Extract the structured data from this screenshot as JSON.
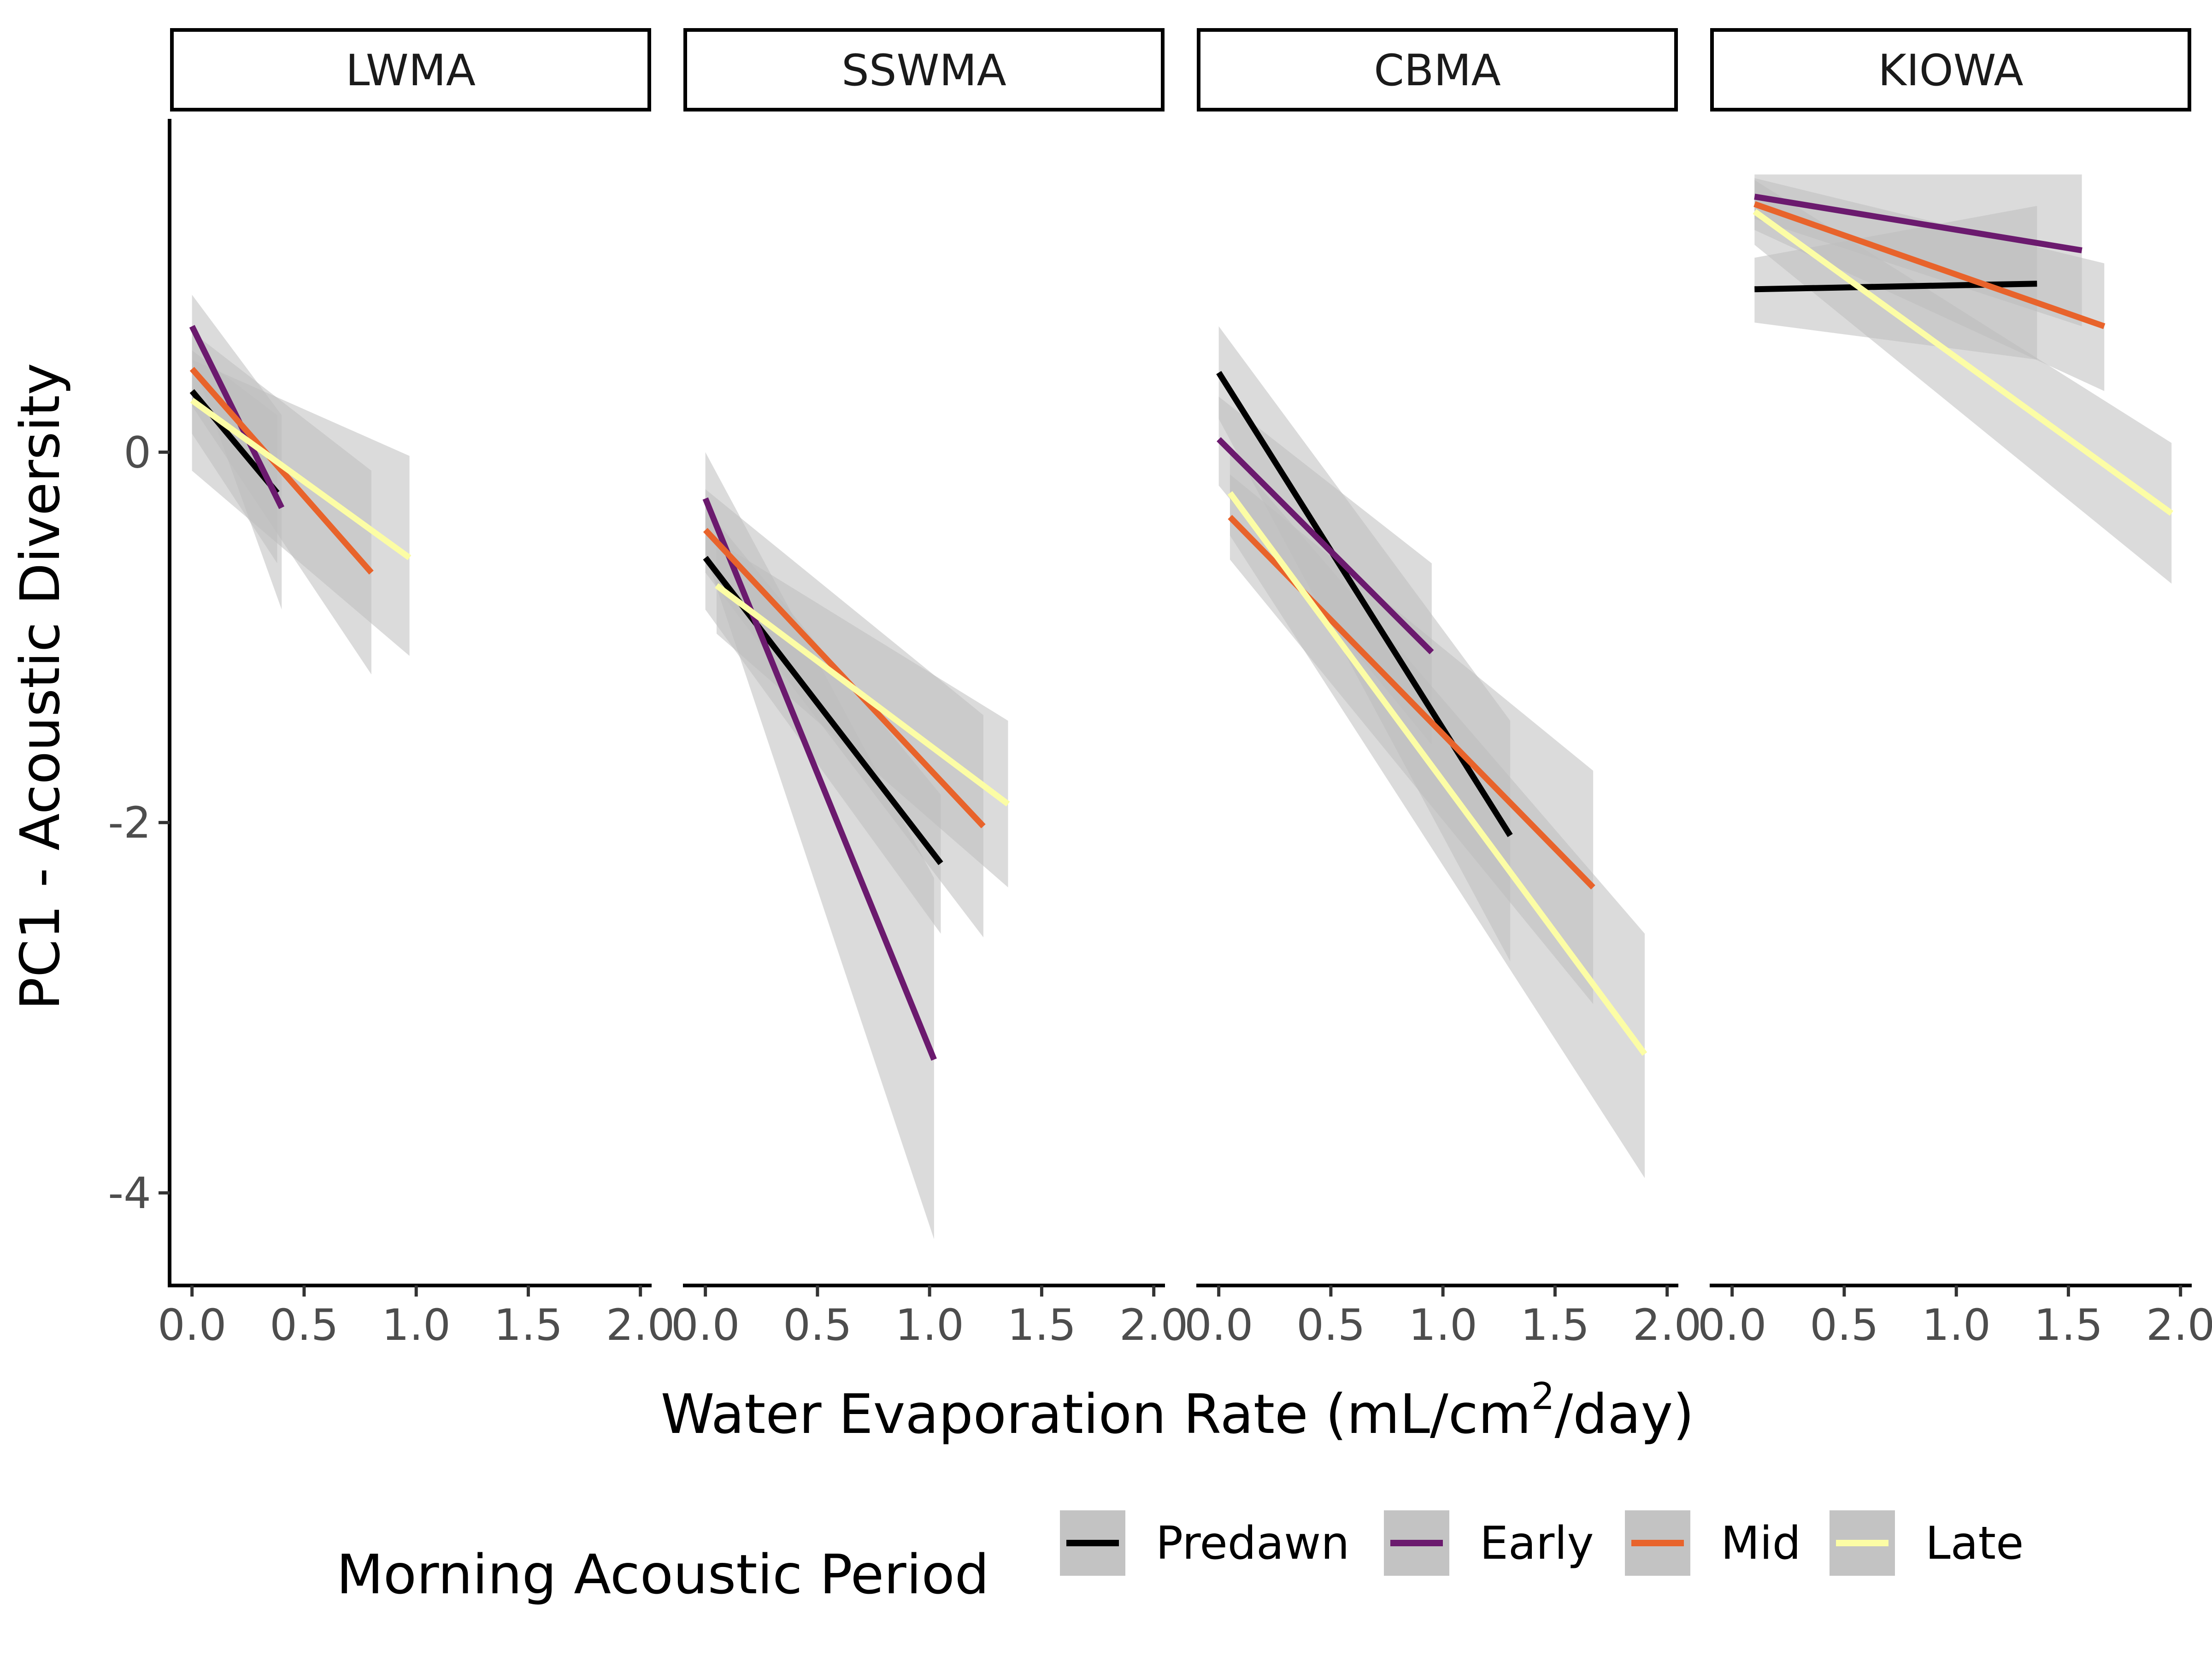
{
  "chart_data": {
    "type": "line",
    "facets": [
      "LWMA",
      "SSWMA",
      "CBMA",
      "KIOWA"
    ],
    "xlabel_main": "Water Evaporation Rate (mL/cm",
    "xlabel_sup": "2",
    "xlabel_tail": "/day)",
    "ylabel": "PC1 - Acoustic Diversity",
    "xlim": [
      -0.1,
      2.05
    ],
    "ylim": [
      -4.5,
      1.8
    ],
    "x_ticks": [
      0.0,
      0.5,
      1.0,
      1.5,
      2.0
    ],
    "x_tick_labels": [
      "0.0",
      "0.5",
      "1.0",
      "1.5",
      "2.0"
    ],
    "y_ticks": [
      0,
      -2,
      -4
    ],
    "y_tick_labels": [
      "0",
      "-2",
      "-4"
    ],
    "legend": {
      "title": "Morning Acoustic Period",
      "position": "bottom",
      "entries": [
        "Predawn",
        "Early",
        "Mid",
        "Late"
      ]
    },
    "series_colors": {
      "Predawn": "#000000",
      "Early": "#6B1A6E",
      "Mid": "#E8632B",
      "Late": "#FCFDA5"
    },
    "ribbon_color": "#BDBDBD",
    "panels": [
      {
        "facet": "LWMA",
        "series": [
          {
            "name": "Predawn",
            "x": [
              0.0,
              0.38
            ],
            "y": [
              0.33,
              -0.22
            ],
            "ci": [
              [
                0.55,
                0.1
              ],
              [
                0.2,
                -0.6
              ]
            ]
          },
          {
            "name": "Early",
            "x": [
              0.0,
              0.4
            ],
            "y": [
              0.68,
              -0.3
            ],
            "ci": [
              [
                0.85,
                0.5
              ],
              [
                0.2,
                -0.85
              ]
            ]
          },
          {
            "name": "Mid",
            "x": [
              0.0,
              0.8
            ],
            "y": [
              0.45,
              -0.65
            ],
            "ci": [
              [
                0.65,
                0.25
              ],
              [
                -0.1,
                -1.2
              ]
            ]
          },
          {
            "name": "Late",
            "x": [
              0.0,
              0.97
            ],
            "y": [
              0.28,
              -0.57
            ],
            "ci": [
              [
                0.5,
                -0.1
              ],
              [
                -0.02,
                -1.1
              ]
            ]
          }
        ]
      },
      {
        "facet": "SSWMA",
        "series": [
          {
            "name": "Predawn",
            "x": [
              0.0,
              1.05
            ],
            "y": [
              -0.57,
              -2.22
            ],
            "ci": [
              [
                -0.3,
                -0.85
              ],
              [
                -1.85,
                -2.6
              ]
            ]
          },
          {
            "name": "Early",
            "x": [
              0.0,
              1.02
            ],
            "y": [
              -0.25,
              -3.28
            ],
            "ci": [
              [
                0.0,
                -0.55
              ],
              [
                -2.3,
                -4.25
              ]
            ]
          },
          {
            "name": "Mid",
            "x": [
              0.0,
              1.24
            ],
            "y": [
              -0.42,
              -2.02
            ],
            "ci": [
              [
                -0.2,
                -0.65
              ],
              [
                -1.42,
                -2.62
              ]
            ]
          },
          {
            "name": "Late",
            "x": [
              0.05,
              1.35
            ],
            "y": [
              -0.72,
              -1.9
            ],
            "ci": [
              [
                -0.48,
                -0.98
              ],
              [
                -1.45,
                -2.35
              ]
            ]
          }
        ]
      },
      {
        "facet": "CBMA",
        "series": [
          {
            "name": "Predawn",
            "x": [
              0.0,
              1.3
            ],
            "y": [
              0.43,
              -2.07
            ],
            "ci": [
              [
                0.68,
                0.18
              ],
              [
                -1.45,
                -2.75
              ]
            ]
          },
          {
            "name": "Early",
            "x": [
              0.0,
              0.95
            ],
            "y": [
              0.07,
              -1.08
            ],
            "ci": [
              [
                0.3,
                -0.18
              ],
              [
                -0.6,
                -1.58
              ]
            ]
          },
          {
            "name": "Mid",
            "x": [
              0.05,
              1.67
            ],
            "y": [
              -0.35,
              -2.35
            ],
            "ci": [
              [
                -0.12,
                -0.58
              ],
              [
                -1.72,
                -2.98
              ]
            ]
          },
          {
            "name": "Late",
            "x": [
              0.05,
              1.9
            ],
            "y": [
              -0.22,
              -3.25
            ],
            "ci": [
              [
                0.0,
                -0.45
              ],
              [
                -2.6,
                -3.92
              ]
            ]
          }
        ]
      },
      {
        "facet": "KIOWA",
        "series": [
          {
            "name": "Predawn",
            "x": [
              0.1,
              1.36
            ],
            "y": [
              0.88,
              0.91
            ],
            "ci": [
              [
                1.05,
                0.7
              ],
              [
                1.33,
                0.5
              ]
            ]
          },
          {
            "name": "Early",
            "x": [
              0.1,
              1.56
            ],
            "y": [
              1.38,
              1.09
            ],
            "ci": [
              [
                1.5,
                1.26
              ],
              [
                1.5,
                0.68
              ]
            ]
          },
          {
            "name": "Mid",
            "x": [
              0.1,
              1.66
            ],
            "y": [
              1.34,
              0.68
            ],
            "ci": [
              [
                1.48,
                1.2
              ],
              [
                1.02,
                0.33
              ]
            ]
          },
          {
            "name": "Late",
            "x": [
              0.1,
              1.96
            ],
            "y": [
              1.3,
              -0.33
            ],
            "ci": [
              [
                1.47,
                1.12
              ],
              [
                0.05,
                -0.71
              ]
            ]
          }
        ]
      }
    ]
  }
}
